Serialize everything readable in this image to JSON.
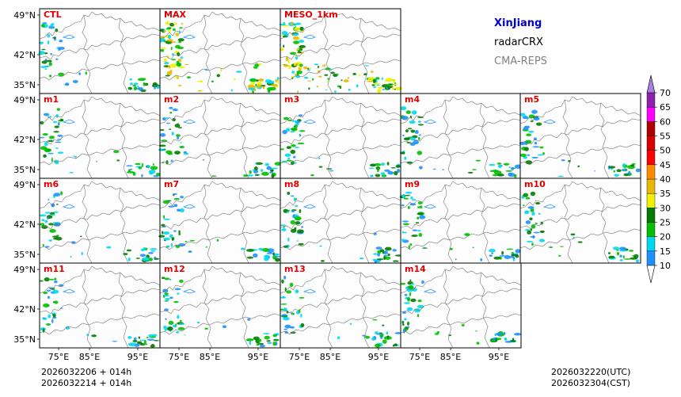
{
  "legend": {
    "region": "XinJiang",
    "product": "radarCRX",
    "model": "CMA-REPS"
  },
  "panels": [
    {
      "label": "CTL",
      "intensity": "low"
    },
    {
      "label": "MAX",
      "intensity": "high"
    },
    {
      "label": "MESO_1km",
      "intensity": "meso"
    },
    {
      "label": "m1",
      "intensity": "low"
    },
    {
      "label": "m2",
      "intensity": "low"
    },
    {
      "label": "m3",
      "intensity": "low"
    },
    {
      "label": "m4",
      "intensity": "low"
    },
    {
      "label": "m5",
      "intensity": "low"
    },
    {
      "label": "m6",
      "intensity": "low"
    },
    {
      "label": "m7",
      "intensity": "low"
    },
    {
      "label": "m8",
      "intensity": "low"
    },
    {
      "label": "m9",
      "intensity": "low"
    },
    {
      "label": "m10",
      "intensity": "low"
    },
    {
      "label": "m11",
      "intensity": "low"
    },
    {
      "label": "m12",
      "intensity": "low"
    },
    {
      "label": "m13",
      "intensity": "low"
    },
    {
      "label": "m14",
      "intensity": "low"
    }
  ],
  "lat_labels": [
    "49°N",
    "42°N",
    "35°N"
  ],
  "lon_labels": [
    "75°E",
    "85°E",
    "95°E"
  ],
  "colorbar": {
    "levels": [
      10,
      15,
      20,
      25,
      30,
      35,
      40,
      45,
      50,
      55,
      60,
      65,
      70
    ],
    "colors": [
      "#1e90ff",
      "#00d8f0",
      "#00c000",
      "#007c00",
      "#f0f000",
      "#e8b800",
      "#ff8c00",
      "#ff0000",
      "#d80000",
      "#b00000",
      "#ff00ff",
      "#9020b0"
    ],
    "extend_low_color": "#ffffff",
    "extend_high_color": "#a880e0"
  },
  "footer": {
    "init_time_utc": "2026032206  +  014h",
    "init_time_cst": "2026032214  +  014h",
    "valid_utc": "2026032220(UTC)",
    "valid_cst": "2026032304(CST)"
  },
  "colors": {
    "panel_label": "#e00000",
    "region_title": "#0000cc",
    "model_text": "#808080"
  }
}
